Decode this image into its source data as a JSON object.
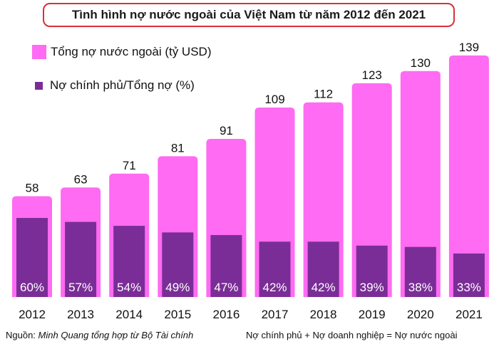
{
  "title": "Tình hình nợ nước ngoài của Việt Nam từ năm 2012 đến 2021",
  "legend": [
    {
      "label": "Tổng nợ nước ngoài (tỷ USD)",
      "color": "#ff6bf2"
    },
    {
      "label": "Nợ chính phủ/Tổng nợ (%)",
      "color": "#7a2d96"
    }
  ],
  "chart_data": {
    "type": "bar",
    "categories": [
      "2012",
      "2013",
      "2014",
      "2015",
      "2016",
      "2017",
      "2018",
      "2019",
      "2020",
      "2021"
    ],
    "series": [
      {
        "name": "Tổng nợ nước ngoài (tỷ USD)",
        "values": [
          58,
          63,
          71,
          81,
          91,
          109,
          112,
          123,
          130,
          139
        ],
        "color": "#ff6bf2"
      },
      {
        "name": "Nợ chính phủ/Tổng nợ (%)",
        "values": [
          60,
          57,
          54,
          49,
          47,
          42,
          42,
          39,
          38,
          33
        ],
        "color": "#7a2d96"
      }
    ],
    "total_labels": [
      "58",
      "63",
      "71",
      "81",
      "91",
      "109",
      "112",
      "123",
      "130",
      "139"
    ],
    "percent_labels": [
      "60%",
      "57%",
      "54%",
      "49%",
      "47%",
      "42%",
      "42%",
      "39%",
      "38%",
      "33%"
    ]
  },
  "footer": {
    "source_prefix": "Nguồn: ",
    "source_text": "Minh Quang tổng hợp từ Bộ Tài chính",
    "equation": "Nợ chính phủ + Nợ doanh nghiệp = Nợ nước ngoài"
  }
}
